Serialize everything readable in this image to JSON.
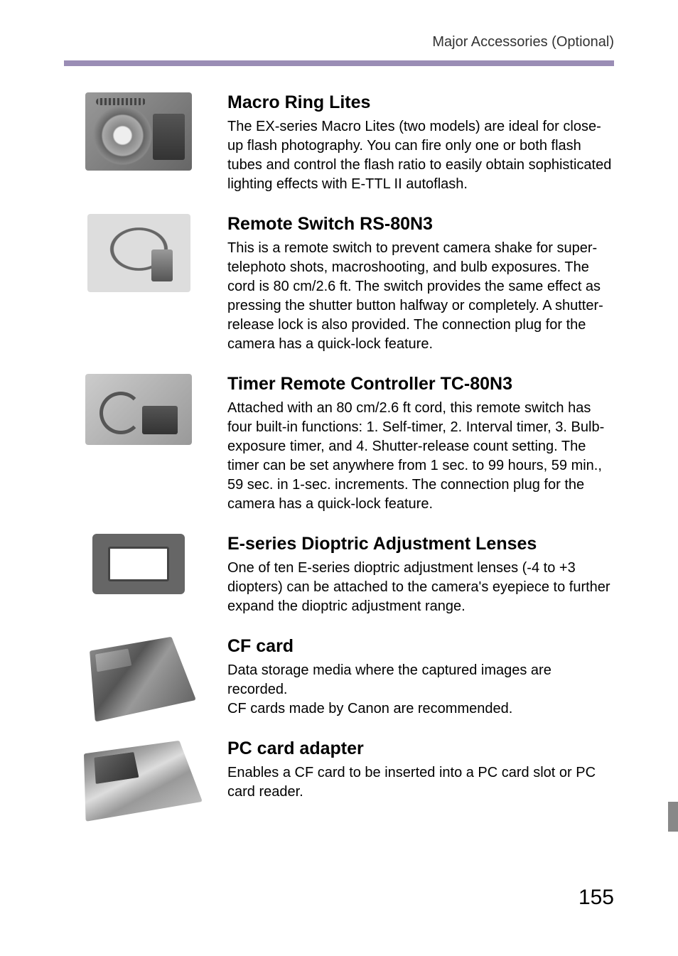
{
  "header": {
    "breadcrumb": "Major Accessories (Optional)"
  },
  "sections": {
    "macro": {
      "title": "Macro Ring Lites",
      "body": "The EX-series Macro Lites (two models) are ideal for close-up flash photography. You can fire only one or both flash tubes and control the flash ratio to easily obtain sophisticated lighting effects with E-TTL II autoflash."
    },
    "remote": {
      "title": "Remote Switch RS-80N3",
      "body": "This is a remote switch to prevent camera shake for super-telephoto shots, macroshooting, and bulb exposures. The cord is 80 cm/2.6 ft. The switch provides the same effect as pressing the shutter button halfway or completely. A shutter-release lock is also provided. The connection plug for the camera has a quick-lock feature."
    },
    "timer": {
      "title": "Timer Remote Controller TC-80N3",
      "body": "Attached with an 80 cm/2.6 ft cord, this remote switch has four built-in functions: 1. Self-timer, 2. Interval timer, 3. Bulb-exposure timer, and 4. Shutter-release count setting. The timer can be set anywhere from 1 sec. to 99 hours, 59 min., 59 sec. in 1-sec. increments. The connection plug for the camera has a quick-lock feature."
    },
    "dioptric": {
      "title": "E-series Dioptric Adjustment Lenses",
      "body": "One of ten E-series dioptric adjustment lenses (-4 to +3 diopters) can be attached to the camera's eyepiece to further expand the dioptric adjustment range."
    },
    "cf": {
      "title": "CF card",
      "body": "Data storage media where the captured images are recorded.\nCF cards made by Canon are recommended."
    },
    "pc": {
      "title": "PC card adapter",
      "body": "Enables a CF card to be inserted into a PC card slot or PC card reader."
    }
  },
  "page_number": "155",
  "colors": {
    "bar": "#9a8db5",
    "marker": "#888888",
    "text": "#000000",
    "header_text": "#333333"
  }
}
